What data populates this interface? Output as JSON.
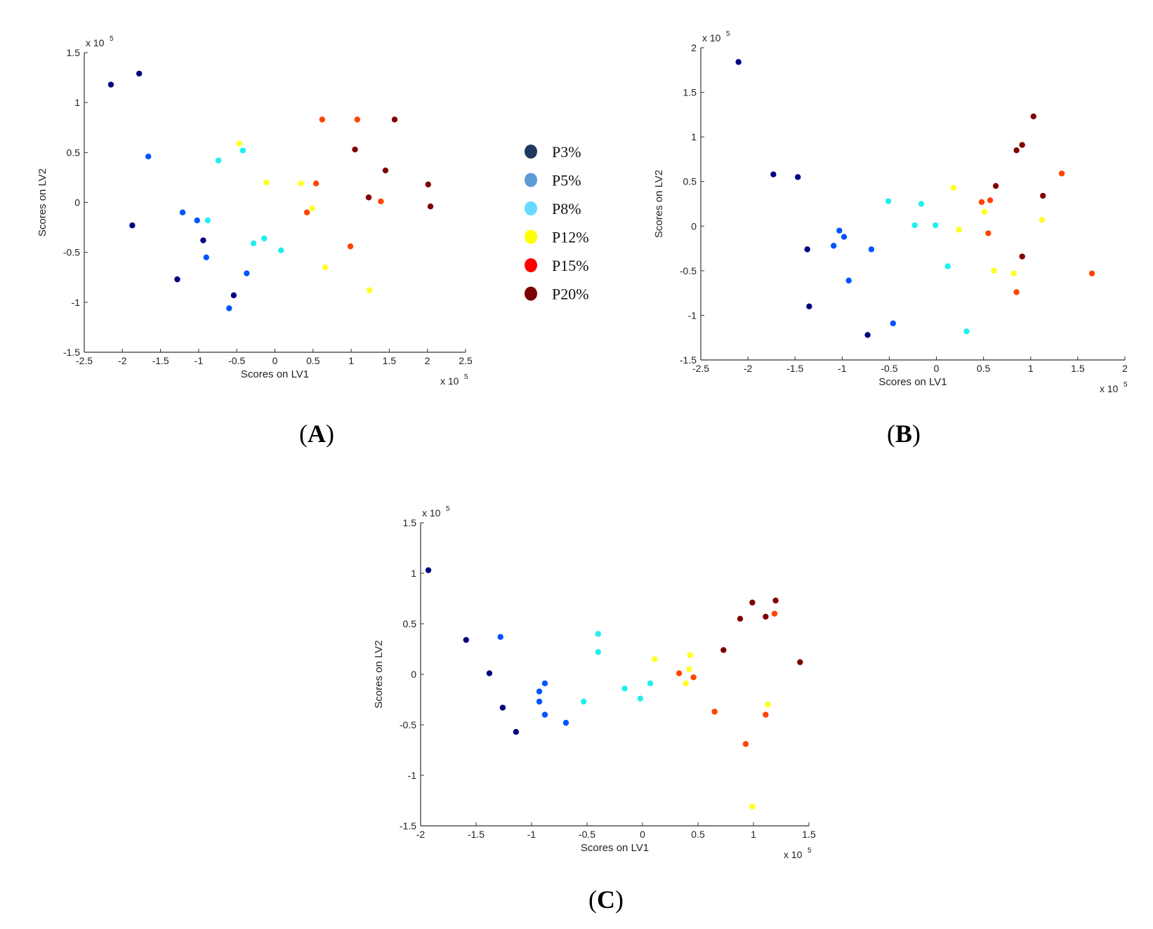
{
  "legend": {
    "entries": [
      {
        "label": "P3%",
        "color": "#1f3a5f"
      },
      {
        "label": "P5%",
        "color": "#5b9bd5"
      },
      {
        "label": "P8%",
        "color": "#66d9ff"
      },
      {
        "label": "P12%",
        "color": "#ffff00"
      },
      {
        "label": "P15%",
        "color": "#ff0000"
      },
      {
        "label": "P20%",
        "color": "#7b0000"
      }
    ]
  },
  "series_colors": {
    "P3%": "#000080",
    "P5%": "#0055ff",
    "P8%": "#22eeee",
    "P12%": "#ffff22",
    "P15%": "#ff4400",
    "P20%": "#800000"
  },
  "chart_data": [
    {
      "panel": "A",
      "panel_label": "A",
      "type": "scatter",
      "xlabel": "Scores on LV1",
      "ylabel": "Scores on LV2",
      "x_multiplier": "x 10",
      "x_multiplier_exp": "5",
      "y_multiplier": "x 10",
      "y_multiplier_exp": "5",
      "xlim": [
        -2.5,
        2.5
      ],
      "ylim": [
        -1.5,
        1.5
      ],
      "xticks": [
        -2.5,
        -2,
        -1.5,
        -1,
        -0.5,
        0,
        0.5,
        1,
        1.5,
        2,
        2.5
      ],
      "yticks": [
        -1.5,
        -1,
        -0.5,
        0,
        0.5,
        1,
        1.5
      ],
      "series": [
        {
          "name": "P3%",
          "points": [
            [
              -2.15,
              1.18
            ],
            [
              -1.78,
              1.29
            ],
            [
              -1.87,
              -0.23
            ],
            [
              -1.28,
              -0.77
            ],
            [
              -0.94,
              -0.38
            ],
            [
              -0.54,
              -0.93
            ]
          ]
        },
        {
          "name": "P5%",
          "points": [
            [
              -1.66,
              0.46
            ],
            [
              -1.21,
              -0.1
            ],
            [
              -1.02,
              -0.18
            ],
            [
              -0.9,
              -0.55
            ],
            [
              -0.37,
              -0.71
            ],
            [
              -0.6,
              -1.06
            ]
          ]
        },
        {
          "name": "P8%",
          "points": [
            [
              -0.74,
              0.42
            ],
            [
              -0.42,
              0.52
            ],
            [
              -0.88,
              -0.18
            ],
            [
              -0.28,
              -0.41
            ],
            [
              -0.14,
              -0.36
            ],
            [
              0.08,
              -0.48
            ]
          ]
        },
        {
          "name": "P12%",
          "points": [
            [
              -0.47,
              0.59
            ],
            [
              -0.11,
              0.2
            ],
            [
              0.34,
              0.19
            ],
            [
              0.49,
              -0.06
            ],
            [
              0.66,
              -0.65
            ],
            [
              1.24,
              -0.88
            ]
          ]
        },
        {
          "name": "P15%",
          "points": [
            [
              0.62,
              0.83
            ],
            [
              1.08,
              0.83
            ],
            [
              0.54,
              0.19
            ],
            [
              0.42,
              -0.1
            ],
            [
              1.39,
              0.01
            ],
            [
              0.99,
              -0.44
            ]
          ]
        },
        {
          "name": "P20%",
          "points": [
            [
              1.57,
              0.83
            ],
            [
              1.05,
              0.53
            ],
            [
              1.45,
              0.32
            ],
            [
              1.23,
              0.05
            ],
            [
              2.01,
              0.18
            ],
            [
              2.04,
              -0.04
            ]
          ]
        }
      ]
    },
    {
      "panel": "B",
      "panel_label": "B",
      "type": "scatter",
      "xlabel": "Scores on LV1",
      "ylabel": "Scores on LV2",
      "x_multiplier": "x 10",
      "x_multiplier_exp": "5",
      "y_multiplier": "x 10",
      "y_multiplier_exp": "5",
      "xlim": [
        -2.5,
        2
      ],
      "ylim": [
        -1.5,
        2
      ],
      "xticks": [
        -2.5,
        -2,
        -1.5,
        -1,
        -0.5,
        0,
        0.5,
        1,
        1.5,
        2
      ],
      "yticks": [
        -1.5,
        -1,
        -0.5,
        0,
        0.5,
        1,
        1.5,
        2
      ],
      "series": [
        {
          "name": "P3%",
          "points": [
            [
              -2.1,
              1.84
            ],
            [
              -1.73,
              0.58
            ],
            [
              -1.47,
              0.55
            ],
            [
              -1.37,
              -0.26
            ],
            [
              -1.35,
              -0.9
            ],
            [
              -0.73,
              -1.22
            ]
          ]
        },
        {
          "name": "P5%",
          "points": [
            [
              -1.03,
              -0.05
            ],
            [
              -1.09,
              -0.22
            ],
            [
              -0.98,
              -0.12
            ],
            [
              -0.69,
              -0.26
            ],
            [
              -0.93,
              -0.61
            ],
            [
              -0.46,
              -1.09
            ]
          ]
        },
        {
          "name": "P8%",
          "points": [
            [
              -0.51,
              0.28
            ],
            [
              -0.16,
              0.25
            ],
            [
              -0.23,
              0.01
            ],
            [
              -0.01,
              0.01
            ],
            [
              0.12,
              -0.45
            ],
            [
              0.32,
              -1.18
            ]
          ]
        },
        {
          "name": "P12%",
          "points": [
            [
              0.18,
              0.43
            ],
            [
              0.24,
              -0.04
            ],
            [
              0.51,
              0.16
            ],
            [
              0.61,
              -0.5
            ],
            [
              0.82,
              -0.53
            ],
            [
              1.12,
              0.07
            ]
          ]
        },
        {
          "name": "P15%",
          "points": [
            [
              0.48,
              0.27
            ],
            [
              0.57,
              0.29
            ],
            [
              0.55,
              -0.08
            ],
            [
              1.33,
              0.59
            ],
            [
              0.85,
              -0.74
            ],
            [
              1.65,
              -0.53
            ]
          ]
        },
        {
          "name": "P20%",
          "points": [
            [
              1.03,
              1.23
            ],
            [
              0.91,
              0.91
            ],
            [
              0.85,
              0.85
            ],
            [
              0.63,
              0.45
            ],
            [
              1.13,
              0.34
            ],
            [
              0.91,
              -0.34
            ]
          ]
        }
      ]
    },
    {
      "panel": "C",
      "panel_label": "C",
      "type": "scatter",
      "xlabel": "Scores on LV1",
      "ylabel": "Scores on LV2",
      "x_multiplier": "x 10",
      "x_multiplier_exp": "5",
      "y_multiplier": "x 10",
      "y_multiplier_exp": "5",
      "xlim": [
        -2,
        1.5
      ],
      "ylim": [
        -1.5,
        1.5
      ],
      "xticks": [
        -2,
        -1.5,
        -1,
        -0.5,
        0,
        0.5,
        1,
        1.5
      ],
      "yticks": [
        -1.5,
        -1,
        -0.5,
        0,
        0.5,
        1,
        1.5
      ],
      "series": [
        {
          "name": "P3%",
          "points": [
            [
              -1.93,
              1.03
            ],
            [
              -1.59,
              0.34
            ],
            [
              -1.38,
              0.01
            ],
            [
              -1.26,
              -0.33
            ],
            [
              -1.14,
              -0.57
            ]
          ]
        },
        {
          "name": "P5%",
          "points": [
            [
              -1.28,
              0.37
            ],
            [
              -0.88,
              -0.09
            ],
            [
              -0.93,
              -0.17
            ],
            [
              -0.93,
              -0.27
            ],
            [
              -0.88,
              -0.4
            ],
            [
              -0.69,
              -0.48
            ]
          ]
        },
        {
          "name": "P8%",
          "points": [
            [
              -0.4,
              0.4
            ],
            [
              -0.4,
              0.22
            ],
            [
              -0.16,
              -0.14
            ],
            [
              -0.02,
              -0.24
            ],
            [
              0.07,
              -0.09
            ],
            [
              -0.53,
              -0.27
            ]
          ]
        },
        {
          "name": "P12%",
          "points": [
            [
              0.11,
              0.15
            ],
            [
              0.43,
              0.19
            ],
            [
              0.42,
              0.05
            ],
            [
              0.39,
              -0.09
            ],
            [
              1.13,
              -0.3
            ],
            [
              0.99,
              -1.31
            ]
          ]
        },
        {
          "name": "P15%",
          "points": [
            [
              0.33,
              0.01
            ],
            [
              0.46,
              -0.03
            ],
            [
              0.65,
              -0.37
            ],
            [
              1.11,
              -0.4
            ],
            [
              0.93,
              -0.69
            ],
            [
              1.19,
              0.6
            ]
          ]
        },
        {
          "name": "P20%",
          "points": [
            [
              0.99,
              0.71
            ],
            [
              1.2,
              0.73
            ],
            [
              0.88,
              0.55
            ],
            [
              1.11,
              0.57
            ],
            [
              0.73,
              0.24
            ],
            [
              1.42,
              0.12
            ]
          ]
        }
      ]
    }
  ]
}
